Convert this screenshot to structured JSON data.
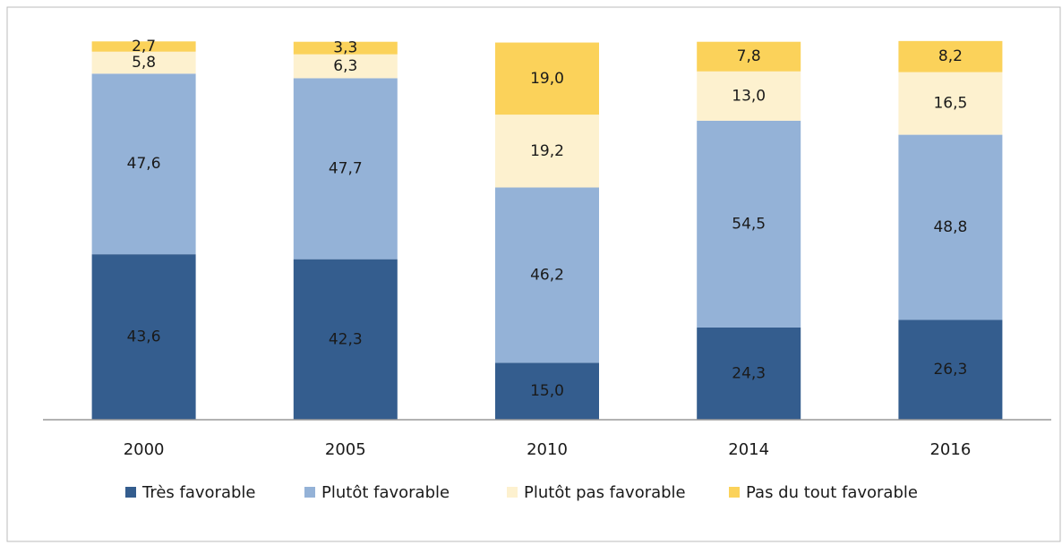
{
  "chart_data": {
    "type": "stacked_bar",
    "categories": [
      "2000",
      "2005",
      "2010",
      "2014",
      "2016"
    ],
    "ylim": [
      0,
      100
    ],
    "series": [
      {
        "name": "Très favorable",
        "color": "#345d8e",
        "values": [
          43.6,
          42.3,
          15.0,
          24.3,
          26.3
        ],
        "value_labels": [
          "43,6",
          "42,3",
          "15,0",
          "24,3",
          "26,3"
        ]
      },
      {
        "name": "Plutôt favorable",
        "color": "#94b2d7",
        "values": [
          47.6,
          47.7,
          46.2,
          54.5,
          48.8
        ],
        "value_labels": [
          "47,6",
          "47,7",
          "46,2",
          "54,5",
          "48,8"
        ]
      },
      {
        "name": "Plutôt pas favorable",
        "color": "#fdf1cf",
        "values": [
          5.8,
          6.3,
          19.2,
          13.0,
          16.5
        ],
        "value_labels": [
          "5,8",
          "6,3",
          "19,2",
          "13,0",
          "16,5"
        ]
      },
      {
        "name": "Pas du tout favorable",
        "color": "#fbd25a",
        "values": [
          2.7,
          3.3,
          19.0,
          7.8,
          8.2
        ],
        "value_labels": [
          "2,7",
          "3,3",
          "19,0",
          "7,8",
          "8,2"
        ]
      }
    ]
  }
}
